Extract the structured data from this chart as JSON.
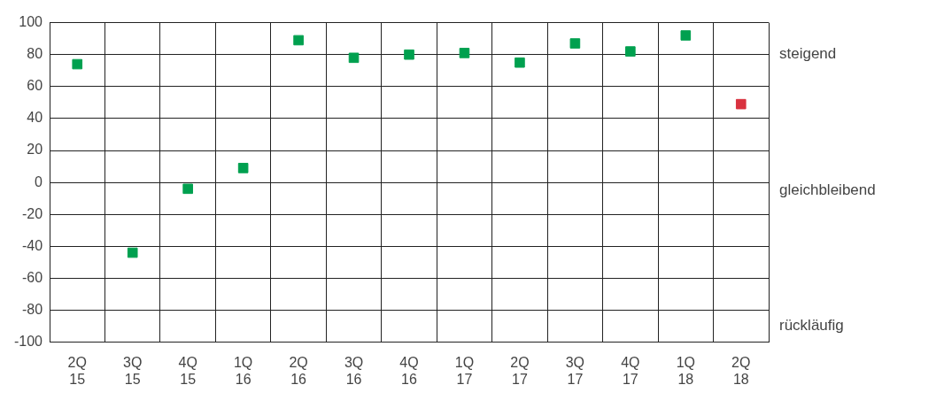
{
  "chart_data": {
    "type": "scatter",
    "categories": [
      "2Q 15",
      "3Q 15",
      "4Q 15",
      "1Q 16",
      "2Q 16",
      "3Q 16",
      "4Q 16",
      "1Q 17",
      "2Q 17",
      "3Q 17",
      "4Q 17",
      "1Q 18",
      "2Q 18"
    ],
    "values": [
      74,
      -44,
      -4,
      9,
      89,
      78,
      80,
      81,
      75,
      87,
      82,
      92,
      49
    ],
    "colors": [
      "#00a04f",
      "#00a04f",
      "#00a04f",
      "#00a04f",
      "#00a04f",
      "#00a04f",
      "#00a04f",
      "#00a04f",
      "#00a04f",
      "#00a04f",
      "#00a04f",
      "#00a04f",
      "#d9323f"
    ],
    "ylim": [
      -100,
      100
    ],
    "yticks": [
      -100,
      -80,
      -60,
      -40,
      -20,
      0,
      20,
      40,
      60,
      80,
      100
    ],
    "annotations": [
      "steigend",
      "gleichbleibend",
      "rückläufig"
    ],
    "grid": true,
    "marker": "square"
  }
}
